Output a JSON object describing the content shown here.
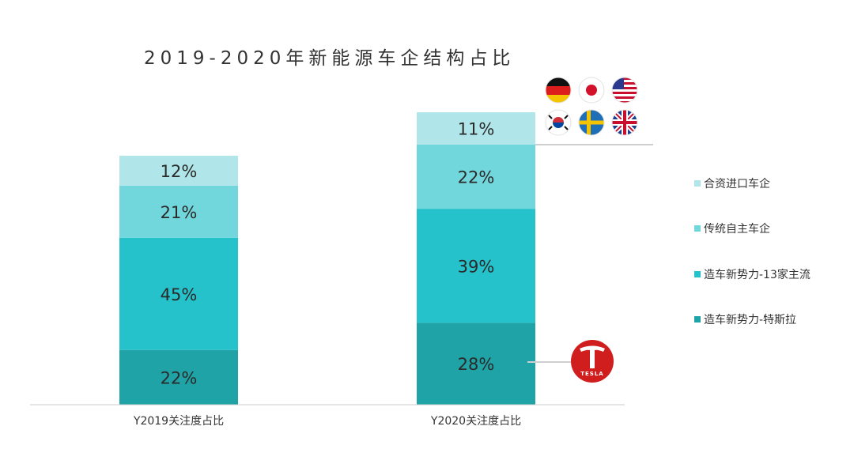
{
  "chart_data": {
    "type": "bar",
    "stacked": true,
    "percent": true,
    "title": "2019-2020年新能源车企结构占比",
    "categories": [
      "Y2019关注度占比",
      "Y2020关注度占比"
    ],
    "series": [
      {
        "name": "造车新势力-特斯拉",
        "values": [
          22,
          28
        ],
        "color": "#1fa3a6"
      },
      {
        "name": "造车新势力-13家主流",
        "values": [
          45,
          39
        ],
        "color": "#25c2cb"
      },
      {
        "name": "传统自主车企",
        "values": [
          21,
          22
        ],
        "color": "#72d7dc"
      },
      {
        "name": "合资进口车企",
        "values": [
          12,
          11
        ],
        "color": "#b0e6e9"
      }
    ],
    "legend_position": "right",
    "legend_order": [
      "合资进口车企",
      "传统自主车企",
      "造车新势力-13家主流",
      "造车新势力-特斯拉"
    ],
    "ylim": [
      0,
      100
    ],
    "grid": false
  },
  "annotations": {
    "flags": [
      "germany-flag",
      "japan-flag",
      "usa-flag",
      "korea-flag",
      "sweden-flag",
      "uk-flag"
    ],
    "tesla_logo_text": "TESLA",
    "tesla_logo_color": "#d01e1e"
  }
}
